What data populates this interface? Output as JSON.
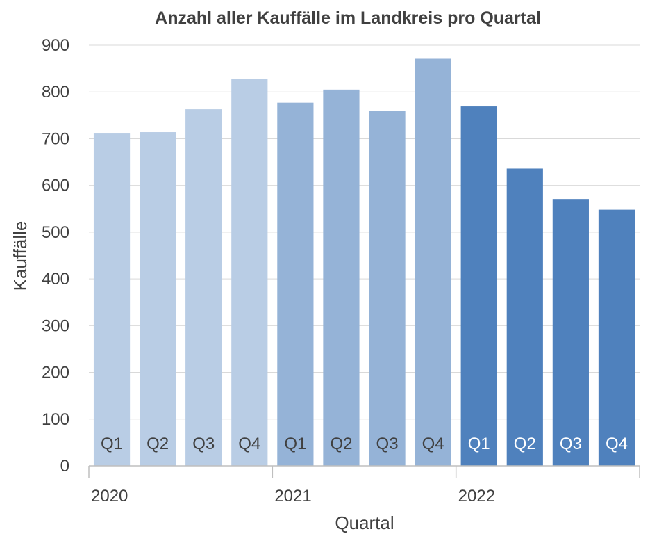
{
  "chart_data": {
    "type": "bar",
    "title": "Anzahl aller Kauffälle im Landkreis pro Quartal",
    "xlabel": "Quartal",
    "ylabel": "Kauffälle",
    "ylim": [
      0,
      900
    ],
    "yticks": [
      0,
      100,
      200,
      300,
      400,
      500,
      600,
      700,
      800,
      900
    ],
    "grid": true,
    "groups": [
      {
        "year": "2020",
        "color": "#b9cde5",
        "label_color": "#404040",
        "bars": [
          {
            "category": "Q1",
            "value": 711
          },
          {
            "category": "Q2",
            "value": 714
          },
          {
            "category": "Q3",
            "value": 763
          },
          {
            "category": "Q4",
            "value": 828
          }
        ]
      },
      {
        "year": "2021",
        "color": "#95b3d7",
        "label_color": "#404040",
        "bars": [
          {
            "category": "Q1",
            "value": 777
          },
          {
            "category": "Q2",
            "value": 805
          },
          {
            "category": "Q3",
            "value": 759
          },
          {
            "category": "Q4",
            "value": 871
          }
        ]
      },
      {
        "year": "2022",
        "color": "#4f81bd",
        "label_color": "#ffffff",
        "bars": [
          {
            "category": "Q1",
            "value": 769
          },
          {
            "category": "Q2",
            "value": 636
          },
          {
            "category": "Q3",
            "value": 571
          },
          {
            "category": "Q4",
            "value": 548
          }
        ]
      }
    ]
  }
}
